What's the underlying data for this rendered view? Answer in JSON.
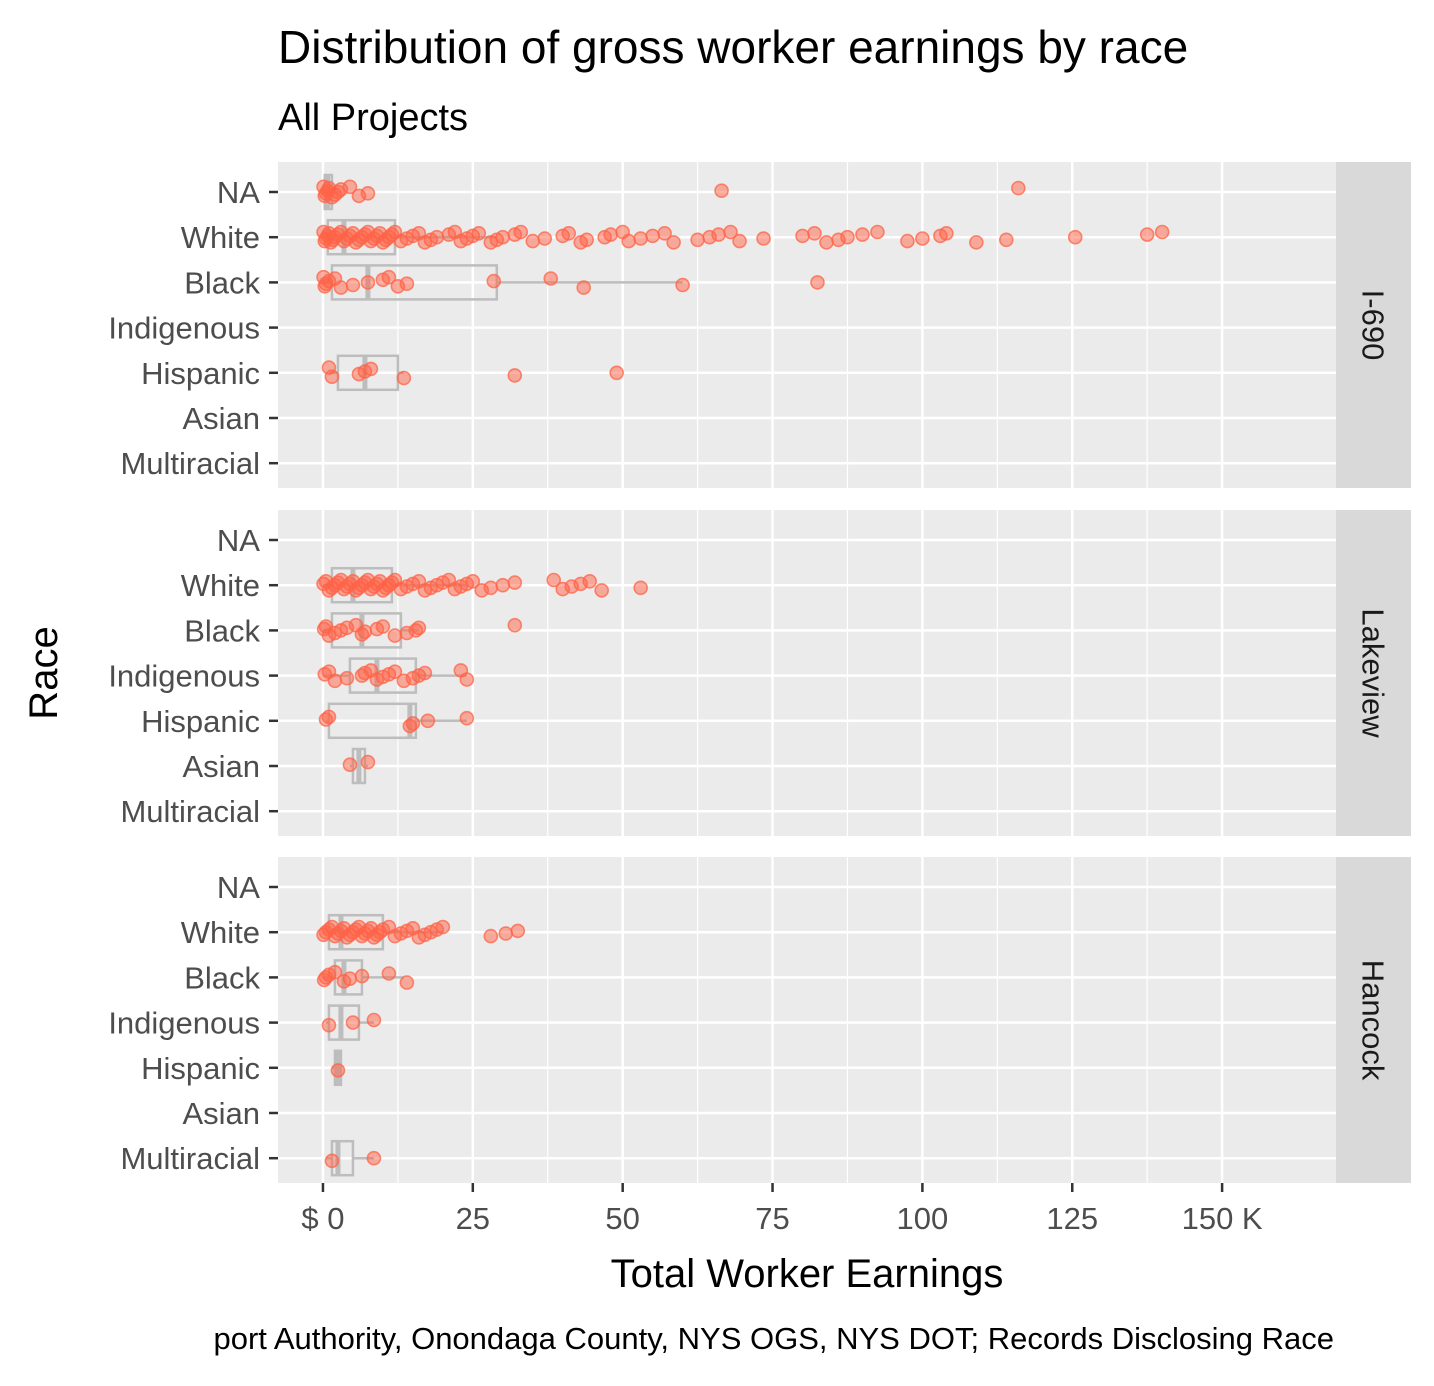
{
  "chart_data": {
    "type": "boxplot-jitter",
    "title": "Distribution of gross worker earnings by race",
    "subtitle": "All Projects",
    "xlabel": "Total Worker Earnings",
    "ylabel": "Race",
    "caption": "port Authority, Onondaga County, NYS OGS, NYS DOT; Records Disclosing Race",
    "x_ticks": [
      0,
      25,
      50,
      75,
      100,
      125,
      150
    ],
    "x_tick_labels": [
      "$ 0",
      "25",
      "50",
      "75",
      "100",
      "125",
      "150 K"
    ],
    "xlim": [
      -7.5,
      169
    ],
    "categories": [
      "NA",
      "White",
      "Black",
      "Indigenous",
      "Hispanic",
      "Asian",
      "Multiracial"
    ],
    "grid": true,
    "colors": {
      "point": "#FF6347",
      "box": "#BDBDBD",
      "panel": "#EBEBEB",
      "strip": "#D9D9D9",
      "grid": "#FFFFFF"
    },
    "facets": [
      {
        "name": "I-690",
        "boxes": [
          {
            "race": "NA",
            "q1": 0.3,
            "median": 0.8,
            "q3": 1.5,
            "wlo": 0.0,
            "whi": 3.0
          },
          {
            "race": "White",
            "q1": 0.8,
            "median": 3.5,
            "q3": 12.0,
            "wlo": 0.0,
            "whi": 29.0
          },
          {
            "race": "Black",
            "q1": 1.5,
            "median": 7.5,
            "q3": 29.0,
            "wlo": 0.0,
            "whi": 60.0
          },
          {
            "race": "Hispanic",
            "q1": 2.5,
            "median": 7.0,
            "q3": 12.5,
            "wlo": 1.0,
            "whi": 13.5
          }
        ],
        "points": [
          {
            "race": "NA",
            "x": [
              0.1,
              0.3,
              0.5,
              0.8,
              1.0,
              1.5,
              2.0,
              2.5,
              3.0,
              4.5,
              6.0,
              7.5,
              66.5,
              116.0
            ]
          },
          {
            "race": "White",
            "x": [
              0.1,
              0.3,
              0.5,
              0.8,
              1.0,
              1.3,
              1.7,
              2.0,
              2.5,
              3.0,
              3.5,
              4.0,
              4.5,
              5.0,
              5.5,
              6.0,
              6.5,
              7.0,
              7.5,
              8.0,
              8.5,
              9.0,
              9.5,
              10.0,
              10.5,
              11.0,
              11.5,
              12.0,
              13.0,
              14.0,
              15.0,
              16.0,
              17.0,
              18.0,
              19.0,
              21.0,
              22.0,
              23.0,
              24.0,
              25.0,
              26.0,
              28.0,
              29.0,
              30.0,
              32.0,
              33.0,
              35.0,
              37.0,
              40.0,
              41.0,
              43.0,
              44.0,
              47.0,
              48.0,
              50.0,
              51.0,
              53.0,
              55.0,
              57.0,
              58.5,
              62.5,
              64.5,
              66.0,
              68.0,
              69.5,
              73.5,
              80.0,
              82.0,
              84.0,
              86.0,
              87.5,
              90.0,
              92.5,
              97.5,
              100.0,
              103.0,
              104.0,
              109.0,
              114.0,
              125.5,
              137.5,
              140.0
            ]
          },
          {
            "race": "Black",
            "x": [
              0.1,
              0.3,
              0.5,
              1.0,
              2.0,
              3.0,
              5.0,
              7.5,
              10.0,
              11.0,
              12.5,
              14.0,
              28.5,
              38.0,
              43.5,
              60.0,
              82.5
            ]
          },
          {
            "race": "Hispanic",
            "x": [
              1.0,
              1.5,
              6.0,
              7.0,
              8.0,
              13.5,
              32.0,
              49.0
            ]
          }
        ]
      },
      {
        "name": "Lakeview",
        "boxes": [
          {
            "race": "White",
            "q1": 1.5,
            "median": 5.0,
            "q3": 11.5,
            "wlo": 0.0,
            "whi": 24.0
          },
          {
            "race": "Black",
            "q1": 1.5,
            "median": 6.5,
            "q3": 13.0,
            "wlo": 0.0,
            "whi": 16.0
          },
          {
            "race": "Indigenous",
            "q1": 4.5,
            "median": 9.0,
            "q3": 15.5,
            "wlo": 0.0,
            "whi": 24.0
          },
          {
            "race": "Hispanic",
            "q1": 1.0,
            "median": 14.5,
            "q3": 15.5,
            "wlo": 0.5,
            "whi": 24.0
          },
          {
            "race": "Asian",
            "q1": 5.0,
            "median": 6.0,
            "q3": 7.0,
            "wlo": 4.5,
            "whi": 7.5
          }
        ],
        "points": [
          {
            "race": "White",
            "x": [
              0.1,
              0.5,
              1.0,
              1.5,
              2.0,
              2.5,
              3.0,
              3.5,
              4.0,
              4.5,
              5.0,
              5.5,
              6.0,
              6.5,
              7.0,
              7.5,
              8.0,
              8.5,
              9.0,
              9.5,
              10.0,
              10.5,
              11.0,
              11.5,
              12.0,
              13.0,
              14.0,
              15.0,
              16.0,
              17.0,
              18.0,
              19.0,
              20.0,
              21.0,
              22.0,
              23.0,
              24.0,
              25.0,
              26.5,
              28.0,
              30.0,
              32.0,
              38.5,
              40.0,
              41.5,
              43.0,
              44.5,
              46.5,
              53.0
            ]
          },
          {
            "race": "Black",
            "x": [
              0.2,
              0.5,
              1.0,
              2.0,
              3.0,
              4.0,
              5.5,
              6.5,
              7.0,
              9.0,
              10.0,
              12.0,
              14.0,
              15.5,
              16.0,
              32.0
            ]
          },
          {
            "race": "Indigenous",
            "x": [
              0.3,
              1.0,
              2.0,
              4.0,
              6.5,
              7.0,
              8.0,
              9.0,
              10.0,
              11.0,
              12.0,
              13.5,
              15.0,
              16.0,
              17.0,
              23.0,
              24.0
            ]
          },
          {
            "race": "Hispanic",
            "x": [
              0.5,
              1.0,
              14.5,
              15.0,
              17.5,
              24.0
            ]
          },
          {
            "race": "Asian",
            "x": [
              4.5,
              7.5
            ]
          }
        ]
      },
      {
        "name": "Hancock",
        "boxes": [
          {
            "race": "White",
            "q1": 1.0,
            "median": 3.0,
            "q3": 10.0,
            "wlo": 0.0,
            "whi": 20.0
          },
          {
            "race": "Black",
            "q1": 2.0,
            "median": 3.5,
            "q3": 6.5,
            "wlo": 0.0,
            "whi": 13.5
          },
          {
            "race": "Indigenous",
            "q1": 1.0,
            "median": 3.0,
            "q3": 6.0,
            "wlo": 0.5,
            "whi": 8.5
          },
          {
            "race": "Hispanic",
            "q1": 2.0,
            "median": 2.5,
            "q3": 3.0,
            "wlo": 1.5,
            "whi": 3.0
          },
          {
            "race": "Multiracial",
            "q1": 1.5,
            "median": 2.5,
            "q3": 5.0,
            "wlo": 0.5,
            "whi": 8.5
          }
        ],
        "points": [
          {
            "race": "White",
            "x": [
              0.1,
              0.5,
              1.0,
              1.5,
              2.0,
              2.5,
              3.0,
              3.5,
              4.0,
              4.5,
              5.0,
              5.5,
              6.0,
              6.5,
              7.0,
              7.5,
              8.0,
              8.5,
              9.0,
              9.5,
              10.0,
              11.0,
              12.0,
              13.0,
              14.0,
              15.0,
              16.0,
              17.0,
              18.0,
              19.0,
              20.0,
              28.0,
              30.5,
              32.5
            ]
          },
          {
            "race": "Black",
            "x": [
              0.2,
              0.5,
              1.0,
              2.0,
              3.5,
              4.5,
              6.5,
              11.0,
              14.0
            ]
          },
          {
            "race": "Indigenous",
            "x": [
              1.0,
              5.0,
              8.5
            ]
          },
          {
            "race": "Hispanic",
            "x": [
              2.5
            ]
          },
          {
            "race": "Multiracial",
            "x": [
              1.5,
              8.5
            ]
          }
        ]
      }
    ]
  }
}
